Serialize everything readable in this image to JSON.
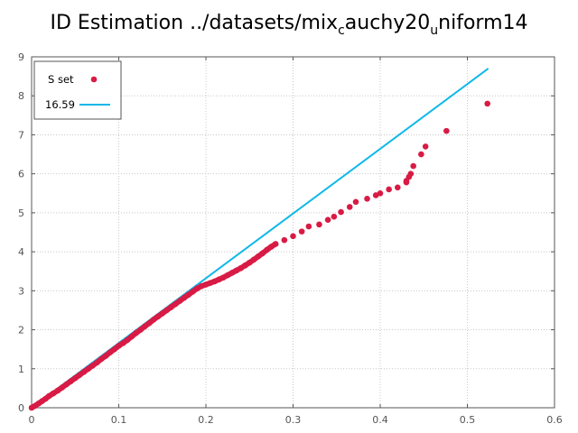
{
  "chart_data": {
    "type": "scatter",
    "title_parts": {
      "main": "ID Estimation ../datasets/mix",
      "sub1": "c",
      "mid": "auchy20",
      "sub2": "u",
      "end": "niform14"
    },
    "xlim": [
      0,
      0.6
    ],
    "ylim": [
      0,
      9
    ],
    "x_ticks": [
      "0",
      "0.1",
      "0.2",
      "0.3",
      "0.4",
      "0.5",
      "0.6"
    ],
    "y_ticks": [
      "0",
      "1",
      "2",
      "3",
      "4",
      "5",
      "6",
      "7",
      "8",
      "9"
    ],
    "grid": true,
    "legend_position": "top-left",
    "colors": {
      "points": "#d81b45",
      "line": "#10b8e8",
      "grid": "#c8c8c8",
      "axis": "#555555"
    },
    "series": [
      {
        "name": "S set",
        "kind": "points",
        "points": [
          [
            0.0,
            0.0
          ],
          [
            0.004,
            0.05
          ],
          [
            0.008,
            0.11
          ],
          [
            0.012,
            0.17
          ],
          [
            0.016,
            0.23
          ],
          [
            0.02,
            0.3
          ],
          [
            0.025,
            0.37
          ],
          [
            0.03,
            0.44
          ],
          [
            0.035,
            0.52
          ],
          [
            0.04,
            0.6
          ],
          [
            0.045,
            0.68
          ],
          [
            0.05,
            0.76
          ],
          [
            0.055,
            0.84
          ],
          [
            0.06,
            0.92
          ],
          [
            0.065,
            1.0
          ],
          [
            0.07,
            1.08
          ],
          [
            0.075,
            1.16
          ],
          [
            0.08,
            1.25
          ],
          [
            0.085,
            1.33
          ],
          [
            0.09,
            1.42
          ],
          [
            0.095,
            1.5
          ],
          [
            0.1,
            1.59
          ],
          [
            0.105,
            1.66
          ],
          [
            0.11,
            1.74
          ],
          [
            0.115,
            1.83
          ],
          [
            0.12,
            1.92
          ],
          [
            0.125,
            2.0
          ],
          [
            0.13,
            2.09
          ],
          [
            0.135,
            2.17
          ],
          [
            0.14,
            2.26
          ],
          [
            0.145,
            2.34
          ],
          [
            0.15,
            2.42
          ],
          [
            0.155,
            2.5
          ],
          [
            0.16,
            2.58
          ],
          [
            0.165,
            2.66
          ],
          [
            0.17,
            2.74
          ],
          [
            0.175,
            2.82
          ],
          [
            0.18,
            2.9
          ],
          [
            0.185,
            2.98
          ],
          [
            0.19,
            3.06
          ],
          [
            0.195,
            3.12
          ],
          [
            0.2,
            3.16
          ],
          [
            0.205,
            3.2
          ],
          [
            0.21,
            3.24
          ],
          [
            0.215,
            3.29
          ],
          [
            0.22,
            3.34
          ],
          [
            0.225,
            3.4
          ],
          [
            0.23,
            3.46
          ],
          [
            0.235,
            3.52
          ],
          [
            0.24,
            3.58
          ],
          [
            0.245,
            3.65
          ],
          [
            0.25,
            3.72
          ],
          [
            0.255,
            3.8
          ],
          [
            0.26,
            3.88
          ],
          [
            0.265,
            3.96
          ],
          [
            0.27,
            4.05
          ],
          [
            0.275,
            4.13
          ],
          [
            0.28,
            4.2
          ],
          [
            0.29,
            4.3
          ],
          [
            0.3,
            4.4
          ],
          [
            0.31,
            4.52
          ],
          [
            0.318,
            4.65
          ],
          [
            0.33,
            4.7
          ],
          [
            0.34,
            4.82
          ],
          [
            0.347,
            4.9
          ],
          [
            0.355,
            5.02
          ],
          [
            0.365,
            5.15
          ],
          [
            0.372,
            5.28
          ],
          [
            0.385,
            5.36
          ],
          [
            0.395,
            5.45
          ],
          [
            0.4,
            5.5
          ],
          [
            0.41,
            5.6
          ],
          [
            0.42,
            5.65
          ],
          [
            0.43,
            5.78
          ],
          [
            0.435,
            6.0
          ],
          [
            0.438,
            6.2
          ],
          [
            0.433,
            5.92
          ],
          [
            0.43,
            5.82
          ],
          [
            0.447,
            6.5
          ],
          [
            0.452,
            6.7
          ],
          [
            0.476,
            7.1
          ],
          [
            0.523,
            7.8
          ]
        ]
      },
      {
        "name": "16.59",
        "kind": "line",
        "points": [
          [
            0,
            0
          ],
          [
            0.524,
            8.7
          ]
        ]
      }
    ]
  }
}
